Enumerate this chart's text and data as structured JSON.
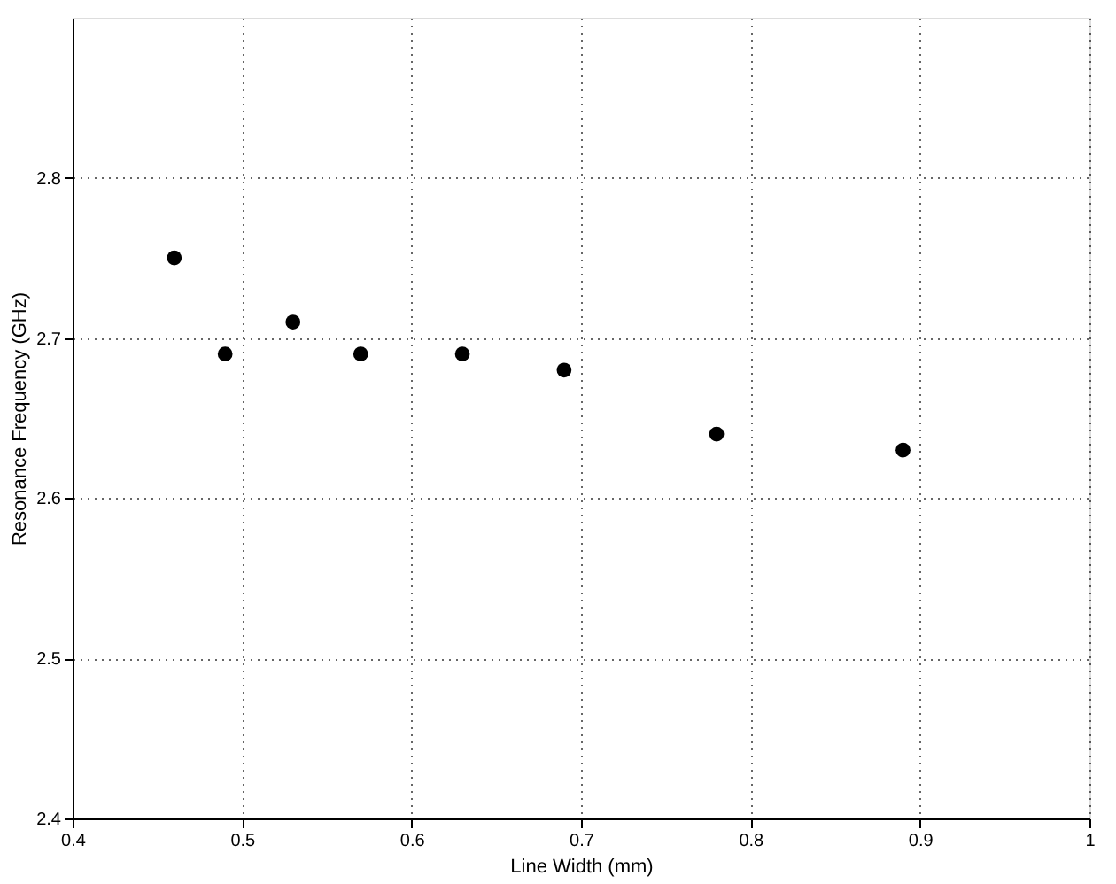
{
  "chart_data": {
    "type": "scatter",
    "xlabel": "Line Width (mm)",
    "ylabel": "Resonance Frequency (GHz)",
    "x": [
      0.46,
      0.49,
      0.53,
      0.57,
      0.63,
      0.69,
      0.78,
      0.89
    ],
    "series": [
      {
        "color": "#000000",
        "values": [
          2.75,
          2.69,
          2.71,
          2.69,
          2.69,
          2.68,
          2.64,
          2.63
        ]
      }
    ],
    "xlim": [
      0.4,
      1.0
    ],
    "xticks": [
      0.4,
      0.5,
      0.6,
      0.7,
      0.8,
      0.9,
      1
    ],
    "ylim": [
      2.4,
      2.9
    ],
    "yticks": [
      2.4,
      2.5,
      2.6,
      2.7,
      2.8
    ],
    "grid": true,
    "marker": "circle",
    "legend": false
  }
}
